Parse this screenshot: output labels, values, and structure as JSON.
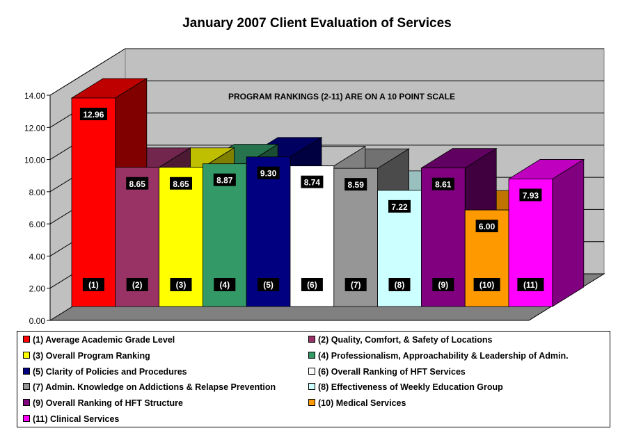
{
  "chart_data": {
    "type": "bar",
    "style": "3d-column",
    "title": "January 2007 Client Evaluation of Services",
    "annotation": "PROGRAM RANKINGS (2-11) ARE ON A 10 POINT SCALE",
    "xlabel": "",
    "ylabel": "",
    "ylim": [
      0,
      14
    ],
    "yticks": [
      "0.00",
      "2.00",
      "4.00",
      "6.00",
      "8.00",
      "10.00",
      "12.00",
      "14.00"
    ],
    "grid": true,
    "legend_position": "bottom",
    "categories": [
      "(1)",
      "(2)",
      "(3)",
      "(4)",
      "(5)",
      "(6)",
      "(7)",
      "(8)",
      "(9)",
      "(10)",
      "(11)"
    ],
    "values": [
      12.96,
      8.65,
      8.65,
      8.87,
      9.3,
      8.74,
      8.59,
      7.22,
      8.61,
      6.0,
      7.93
    ],
    "value_labels": [
      "12.96",
      "8.65",
      "8.65",
      "8.87",
      "9.30",
      "8.74",
      "8.59",
      "7.22",
      "8.61",
      "6.00",
      "7.93"
    ],
    "series_names": [
      "(1) Average Academic Grade Level",
      "(2) Quality, Comfort, & Safety of Locations",
      "(3) Overall Program Ranking",
      "(4) Professionalism, Approachability  & Leadership of Admin.",
      "(5) Clarity of Policies and Procedures",
      "(6) Overall Ranking of HFT Services",
      "(7) Admin. Knowledge on Addictions & Relapse Prevention",
      "(8) Effectiveness of Weekly Education Group",
      "(9) Overall Ranking of HFT Structure",
      "(10) Medical Services",
      "(11) Clinical Services"
    ],
    "colors": [
      "#FF0000",
      "#993366",
      "#FFFF00",
      "#339966",
      "#000080",
      "#FFFFFF",
      "#969696",
      "#CCFFFF",
      "#800080",
      "#FF9900",
      "#FF00FF"
    ]
  }
}
